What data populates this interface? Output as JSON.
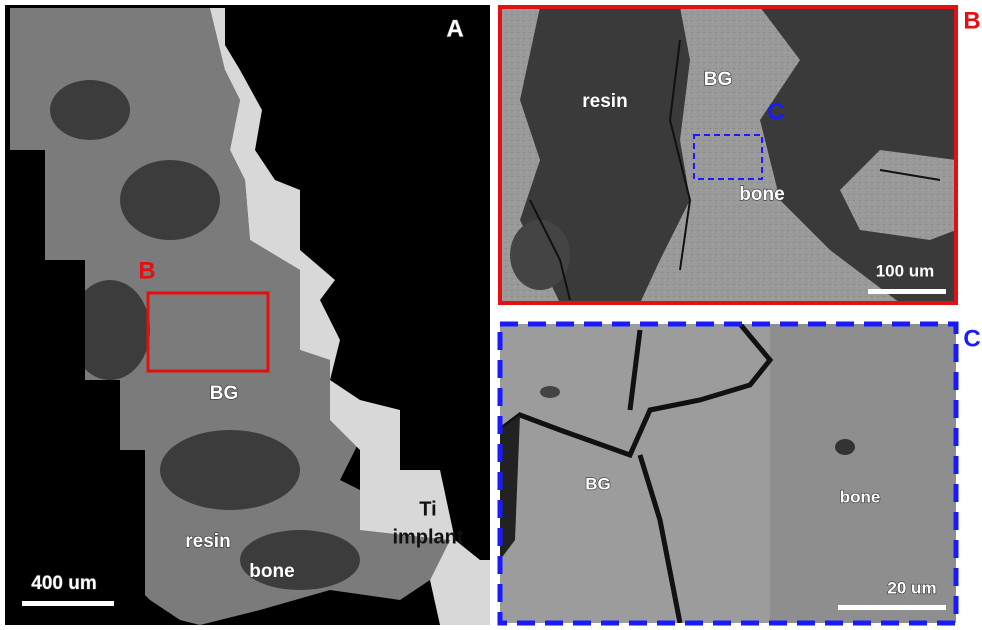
{
  "panels": [
    {
      "letter": "A",
      "labels": {
        "inset_letter": "B",
        "bg": "BG",
        "resin": "resin",
        "bone": "bone",
        "implant": [
          "Ti",
          "implant"
        ]
      },
      "scale_bar": "400 um"
    },
    {
      "letter": "B",
      "labels": {
        "resin": "resin",
        "bg": "BG",
        "inset_letter": "C",
        "bone": "bone"
      },
      "scale_bar": "100 um"
    },
    {
      "letter": "C",
      "labels": {
        "bg": "BG",
        "bone": "bone"
      },
      "scale_bar": "20 um"
    }
  ]
}
